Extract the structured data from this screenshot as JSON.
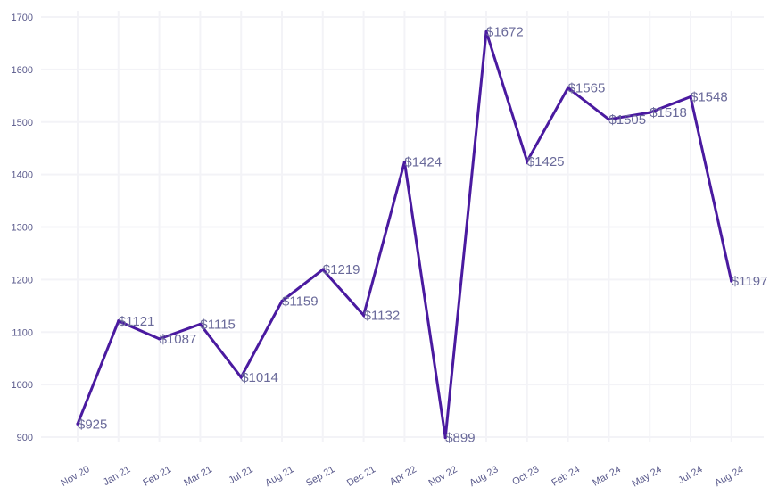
{
  "chart_data": {
    "type": "line",
    "title": "",
    "xlabel": "",
    "ylabel": "",
    "categories": [
      "Nov 20",
      "Jan 21",
      "Feb 21",
      "Mar 21",
      "Jul 21",
      "Aug 21",
      "Sep 21",
      "Dec 21",
      "Apr 22",
      "Nov 22",
      "Aug 23",
      "Oct 23",
      "Feb 24",
      "Mar 24",
      "May 24",
      "Jul 24",
      "Aug 24"
    ],
    "series": [
      {
        "values": [
          925,
          1121,
          1087,
          1115,
          1014,
          1159,
          1219,
          1132,
          1424,
          899,
          1672,
          1425,
          1565,
          1505,
          1518,
          1548,
          1197
        ],
        "color": "#4a1aa0"
      }
    ],
    "data_labels": [
      "$925",
      "$1121",
      "$1087",
      "$1115",
      "$1014",
      "$1159",
      "$1219",
      "$1132",
      "$1424",
      "$899",
      "$1672",
      "$1425",
      "$1565",
      "$1505",
      "$1518",
      "$1548",
      "$1197"
    ],
    "y_ticks": [
      "900",
      "1000",
      "1100",
      "1200",
      "1300",
      "1400",
      "1500",
      "1600",
      "1700"
    ],
    "ylim": [
      900,
      1700
    ],
    "grid": true,
    "legend": "none",
    "colors": {
      "line": "#4a1aa0",
      "tick_text": "#5a5a8c",
      "label_text": "#6a6a9a",
      "grid": "#f3f3f7"
    }
  }
}
